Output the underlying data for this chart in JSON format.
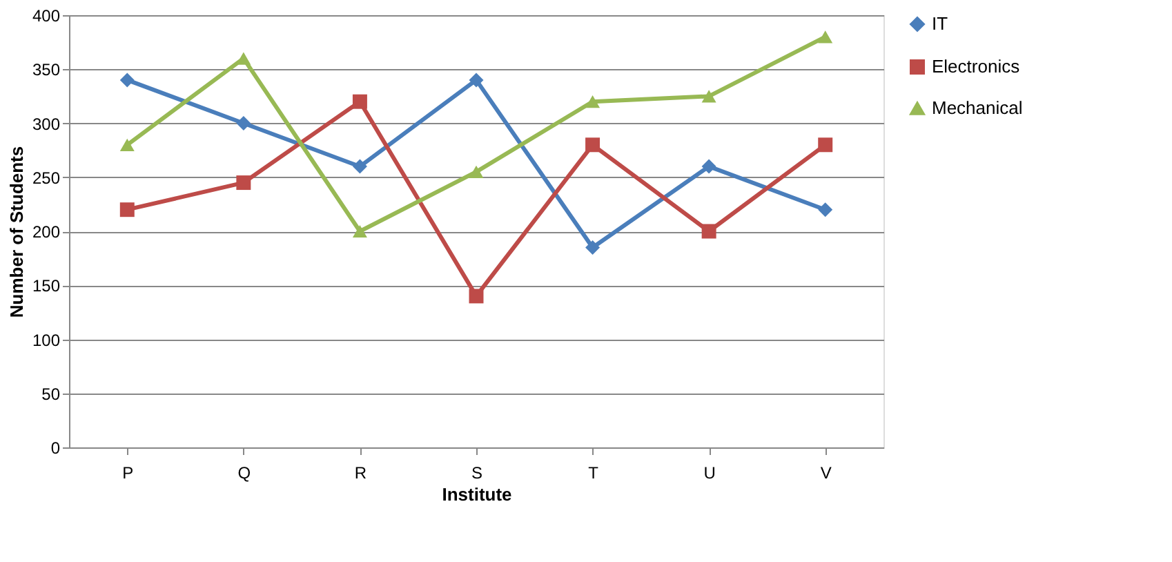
{
  "chart_data": {
    "type": "line",
    "xlabel": "Institute",
    "ylabel": "Number of Students",
    "categories": [
      "P",
      "Q",
      "R",
      "S",
      "T",
      "U",
      "V"
    ],
    "series": [
      {
        "name": "IT",
        "color": "#4a7ebb",
        "marker": "diamond",
        "values": [
          340,
          300,
          260,
          340,
          185,
          260,
          220
        ]
      },
      {
        "name": "Electronics",
        "color": "#be4b48",
        "marker": "square",
        "values": [
          220,
          245,
          320,
          140,
          280,
          200,
          280
        ]
      },
      {
        "name": "Mechanical",
        "color": "#98b954",
        "marker": "triangle",
        "values": [
          280,
          360,
          200,
          255,
          320,
          325,
          380
        ]
      }
    ],
    "ylim": [
      0,
      400
    ],
    "yticks": [
      0,
      50,
      100,
      150,
      200,
      250,
      300,
      350,
      400
    ],
    "grid": "y",
    "legend": "right",
    "line_style": "solid"
  }
}
